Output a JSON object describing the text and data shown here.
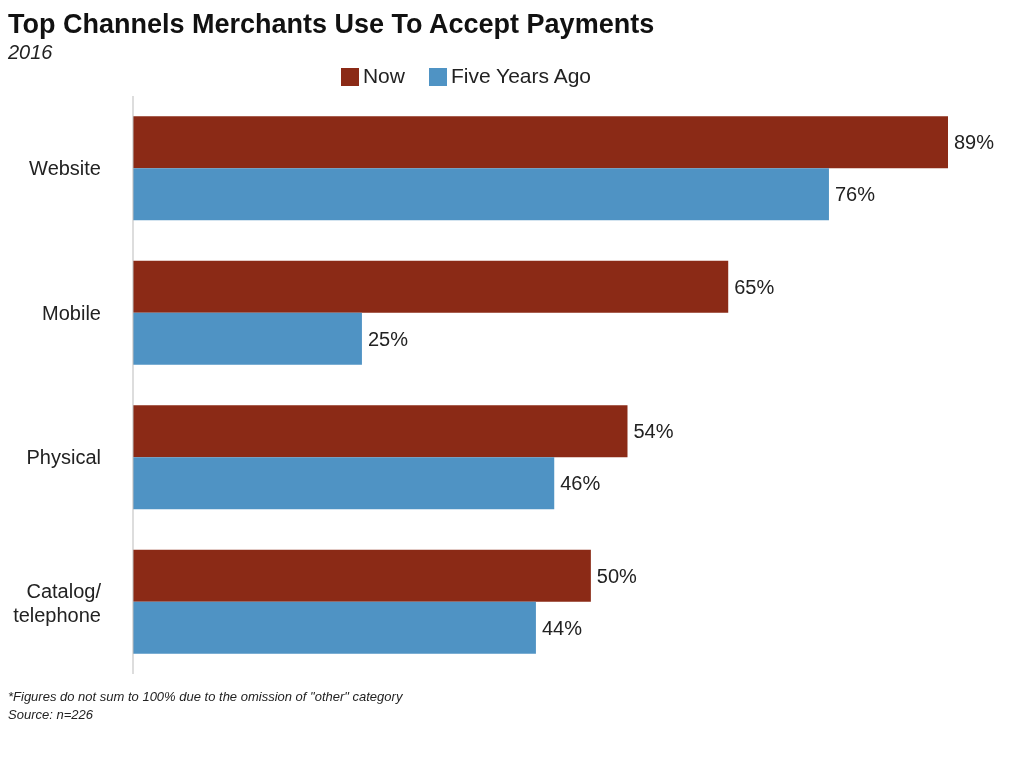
{
  "chart_data": {
    "type": "bar",
    "orientation": "horizontal",
    "title": "Top Channels Merchants Use To Accept Payments",
    "subtitle": "2016",
    "categories": [
      "Website",
      "Mobile",
      "Physical",
      "Catalog/telephone"
    ],
    "series": [
      {
        "name": "Now",
        "color": "#8b2a16",
        "values": [
          89,
          65,
          54,
          50
        ],
        "value_labels": [
          "89%",
          "65%",
          "54%",
          "50%"
        ]
      },
      {
        "name": "Five Years Ago",
        "color": "#4f93c4",
        "values": [
          76,
          25,
          46,
          44
        ],
        "value_labels": [
          "76%",
          "25%",
          "46%",
          "44%"
        ]
      }
    ],
    "tick_labels": "y",
    "grid": false,
    "legend": "top",
    "annotations": [
      "*Figures do not sum to 100% due to the omission of \"other\" category",
      "Source: n=226"
    ]
  }
}
